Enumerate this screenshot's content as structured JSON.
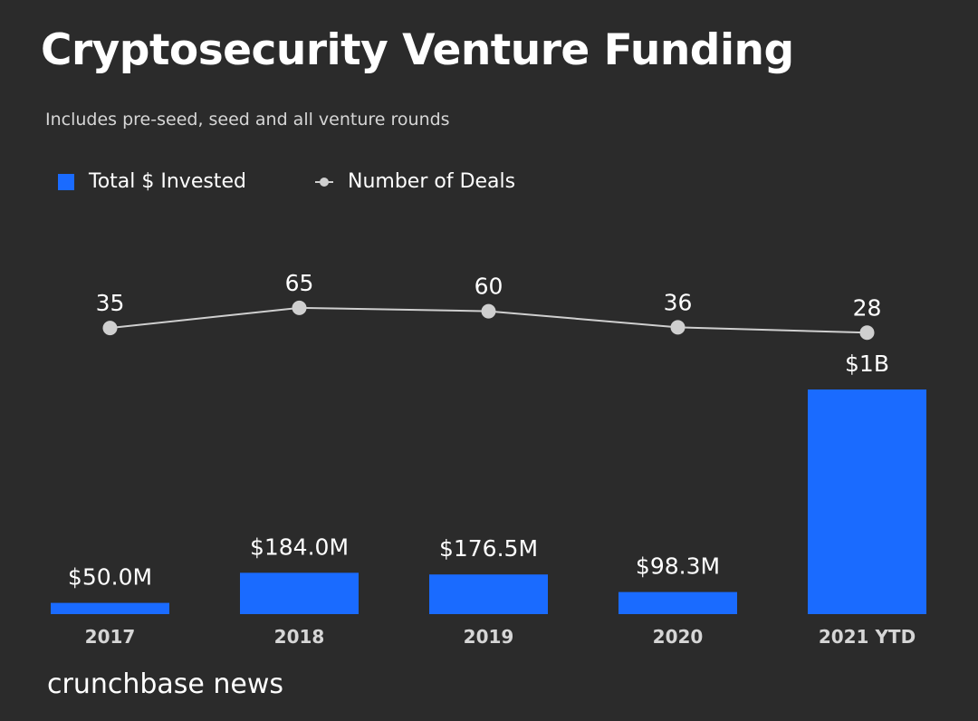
{
  "chart_data": {
    "type": "bar",
    "title": "Cryptosecurity Venture Funding",
    "subtitle": "Includes pre-seed, seed and all venture rounds",
    "categories": [
      "2017",
      "2018",
      "2019",
      "2020",
      "2021 YTD"
    ],
    "series": [
      {
        "name": "Total $ Invested",
        "kind": "bar",
        "values": [
          50.0,
          184.0,
          176.5,
          98.3,
          1000
        ],
        "unit": "$M",
        "labels": [
          "$50.0M",
          "$184.0M",
          "$176.5M",
          "$98.3M",
          "$1B"
        ],
        "color": "#1a6bff"
      },
      {
        "name": "Number of Deals",
        "kind": "line",
        "values": [
          35,
          65,
          60,
          36,
          28
        ],
        "labels": [
          "35",
          "65",
          "60",
          "36",
          "28"
        ],
        "color": "#cfcfcf"
      }
    ],
    "xlabel": "",
    "ylabel": "",
    "ylim": [
      0,
      1000
    ],
    "legend": "top-left",
    "grid": false
  },
  "legend": {
    "bars_label": "Total $ Invested",
    "line_label": "Number of Deals"
  },
  "brand": "crunchbase news",
  "colors": {
    "background": "#2b2b2b",
    "bar": "#1a6bff",
    "line": "#cfcfcf",
    "text": "#ffffff"
  }
}
